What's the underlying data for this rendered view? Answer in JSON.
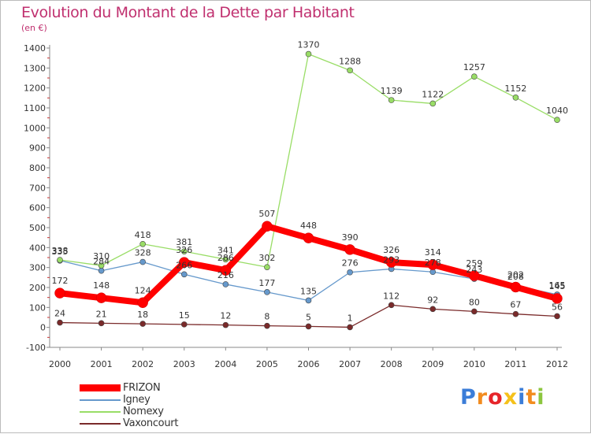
{
  "header": {
    "title": "Evolution du Montant de la Dette par Habitant",
    "unit": "(en €)"
  },
  "chart_data": {
    "type": "line",
    "title": "Evolution du Montant de la Dette par Habitant",
    "subtitle": "(en €)",
    "xlabel": "",
    "ylabel": "",
    "categories": [
      "2000",
      "2001",
      "2002",
      "2003",
      "2004",
      "2005",
      "2006",
      "2007",
      "2008",
      "2009",
      "2010",
      "2011",
      "2012"
    ],
    "y_ticks": [
      -100,
      0,
      100,
      200,
      300,
      400,
      500,
      600,
      700,
      800,
      900,
      1000,
      1100,
      1200,
      1300,
      1400
    ],
    "ylim": [
      -100,
      1400
    ],
    "grid": false,
    "legend_position": "bottom-left",
    "series": [
      {
        "name": "FRIZON",
        "color": "#ff0000",
        "values": [
          172,
          148,
          124,
          326,
          286,
          507,
          448,
          390,
          326,
          314,
          259,
          202,
          145
        ],
        "labels": [
          "172",
          "148",
          "124",
          "326",
          "286",
          "507",
          "448",
          "390",
          "326",
          "314",
          "259",
          "202",
          "145"
        ]
      },
      {
        "name": "Igney",
        "color": "#6699cc",
        "values": [
          335,
          284,
          328,
          266,
          216,
          177,
          135,
          276,
          293,
          278,
          243,
          208,
          165
        ],
        "labels": [
          "335",
          "284",
          "328",
          "266",
          "216",
          "177",
          "135",
          "276",
          "293",
          "278",
          "243",
          "208",
          "165"
        ]
      },
      {
        "name": "Nomexy",
        "color": "#99dd66",
        "values": [
          338,
          310,
          418,
          381,
          341,
          302,
          1370,
          1288,
          1139,
          1122,
          1257,
          1152,
          1040
        ],
        "labels": [
          "338",
          "310",
          "418",
          "381",
          "341",
          "302",
          "1370",
          "1288",
          "1139",
          "1122",
          "1257",
          "1152",
          "1040"
        ]
      },
      {
        "name": "Vaxoncourt",
        "color": "#7a2a2a",
        "values": [
          24,
          21,
          18,
          15,
          12,
          8,
          5,
          1,
          112,
          92,
          80,
          67,
          56
        ],
        "labels": [
          "24",
          "21",
          "18",
          "15",
          "12",
          "8",
          "5",
          "1",
          "112",
          "92",
          "80",
          "67",
          "56"
        ]
      }
    ]
  },
  "legend": {
    "items": [
      {
        "label": "FRIZON",
        "color": "#ff0000"
      },
      {
        "label": "Igney",
        "color": "#6699cc"
      },
      {
        "label": "Nomexy",
        "color": "#99dd66"
      },
      {
        "label": "Vaxoncourt",
        "color": "#7a2a2a"
      }
    ]
  },
  "logo": {
    "text": "Proxiti",
    "letter_colors": [
      "#3b7dd8",
      "#f28c1f",
      "#e6252a",
      "#f5c11a",
      "#3b7dd8",
      "#f28c1f",
      "#8cc63f"
    ]
  }
}
